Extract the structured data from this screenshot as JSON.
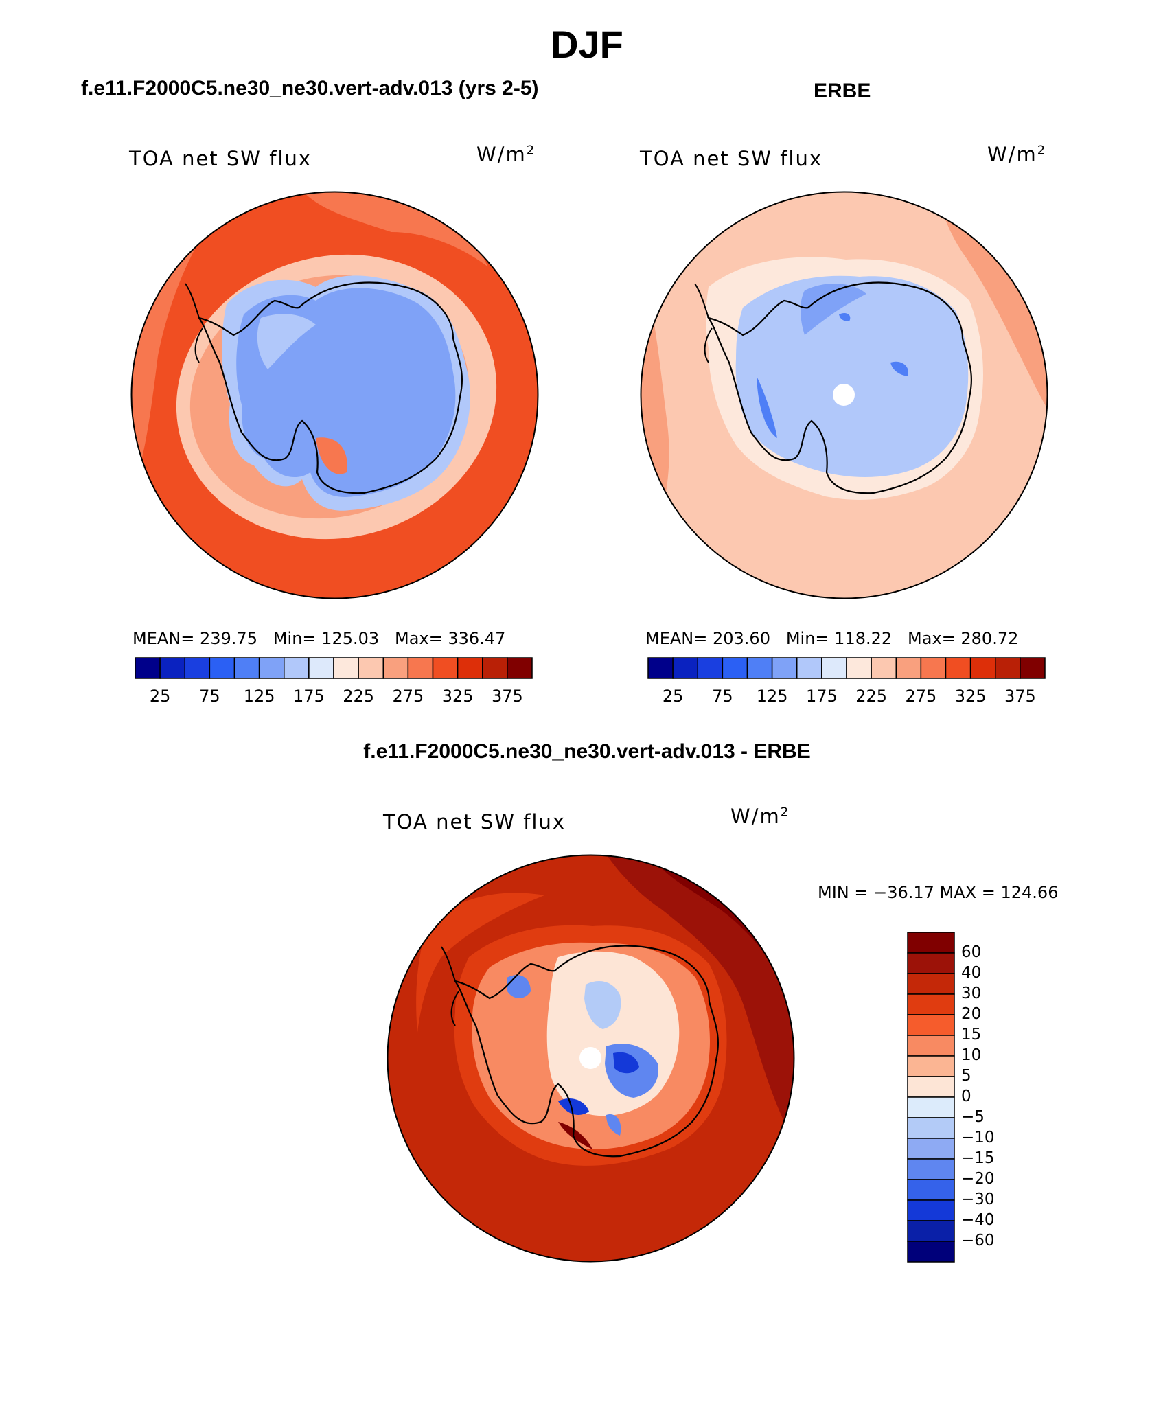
{
  "figure": {
    "title": "DJF"
  },
  "panels": {
    "model": {
      "case_title": "f.e11.F2000C5.ne30_ne30.vert-adv.013 (yrs 2-5)",
      "variable": "TOA net SW flux",
      "units": "W/m",
      "units_sup": "2",
      "stats": "MEAN= 239.75   Min= 125.03   Max= 336.47"
    },
    "obs": {
      "case_title": "ERBE",
      "variable": "TOA net SW flux",
      "units": "W/m",
      "units_sup": "2",
      "stats": "MEAN= 203.60   Min= 118.22   Max= 280.72"
    },
    "diff": {
      "case_title": "f.e11.F2000C5.ne30_ne30.vert-adv.013 - ERBE",
      "variable": "TOA net SW flux",
      "units": "W/m",
      "units_sup": "2",
      "stats": "MIN = −36.17 MAX = 124.66"
    }
  },
  "colorbar_abs": {
    "colors": [
      "#00008a",
      "#0a22c0",
      "#1a3fe0",
      "#2b60f4",
      "#4f7ff6",
      "#7fa2f7",
      "#b1c8fa",
      "#dde9fb",
      "#fde8dc",
      "#fcc8b0",
      "#f9a07e",
      "#f7774f",
      "#f04e22",
      "#dd2f09",
      "#b92006",
      "#800000"
    ],
    "tick_labels": [
      "25",
      "75",
      "125",
      "175",
      "225",
      "275",
      "325",
      "375"
    ]
  },
  "colorbar_diff": {
    "colors": [
      "#800000",
      "#9c1208",
      "#c42808",
      "#e03c10",
      "#f65c2c",
      "#f88a62",
      "#fbb593",
      "#fde5d6",
      "#dcebfb",
      "#b3cbf7",
      "#8eaaf3",
      "#5f86f0",
      "#3562ea",
      "#1439d8",
      "#0a20a8",
      "#00007a"
    ],
    "tick_labels": [
      "60",
      "40",
      "30",
      "20",
      "15",
      "10",
      "5",
      "0",
      "−5",
      "−10",
      "−15",
      "−20",
      "−30",
      "−40",
      "−60"
    ]
  },
  "map_colors": {
    "model_ocean": "#f04e22",
    "model_mid": "#f7774f",
    "model_ring": "#f9a07e",
    "model_ring2": "#fcc8b0",
    "model_ice": "#7fa2f7",
    "model_ice_edge": "#b1c8fa",
    "obs_ocean": "#fcc8b0",
    "obs_outer": "#f9a07e",
    "obs_ring": "#fde8dc",
    "obs_ice": "#7fa2f7",
    "obs_ice_dark": "#4f7ff6",
    "obs_ice_edge": "#b1c8fa",
    "diff_ocean": "#c42808",
    "diff_dark": "#9c1208",
    "diff_darkest": "#800000",
    "diff_mid": "#e03c10",
    "diff_light": "#f88a62",
    "diff_pale": "#fde5d6",
    "diff_blue": "#5f86f0",
    "diff_blue_dark": "#1439d8",
    "diff_blue_pale": "#b3cbf7",
    "pole_marker": "#ffffff",
    "coastline": "#000000"
  }
}
